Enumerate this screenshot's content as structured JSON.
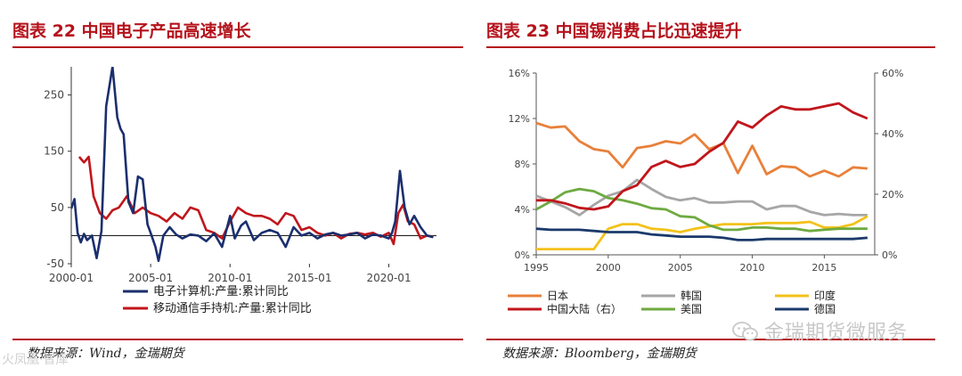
{
  "left": {
    "title": "图表 22 中国电子产品高速增长",
    "source": "数据来源：Wind，金瑞期货",
    "chart_data": {
      "type": "line",
      "title": "中国电子产品高速增长",
      "xlabel": "",
      "ylabel": "",
      "xlim": [
        2000,
        2023
      ],
      "ylim": [
        -50,
        300
      ],
      "yticks": [
        -50,
        50,
        150,
        250
      ],
      "yticklabels": [
        "-50",
        "50",
        "150",
        "250"
      ],
      "xticks": [
        2000,
        2005,
        2010,
        2015,
        2020
      ],
      "xticklabels": [
        "2000-01",
        "2005-01",
        "2010-01",
        "2015-01",
        "2020-01"
      ],
      "legend_position": "bottom",
      "series": [
        {
          "name": "电子计算机:产量:累计同比",
          "color": "#1b2f6e",
          "x": [
            2000.0,
            2000.2,
            2000.4,
            2000.6,
            2000.8,
            2001.0,
            2001.3,
            2001.6,
            2001.9,
            2002.2,
            2002.6,
            2002.9,
            2003.1,
            2003.3,
            2003.6,
            2003.9,
            2004.2,
            2004.5,
            2004.8,
            2005.0,
            2005.3,
            2005.5,
            2005.8,
            2006.2,
            2006.6,
            2007.0,
            2007.5,
            2008.0,
            2008.5,
            2009.0,
            2009.5,
            2010.0,
            2010.3,
            2010.7,
            2011.0,
            2011.5,
            2012.0,
            2012.5,
            2013.0,
            2013.5,
            2014.0,
            2014.5,
            2015.0,
            2015.5,
            2016.0,
            2016.5,
            2017.0,
            2017.5,
            2018.0,
            2018.5,
            2019.0,
            2019.5,
            2020.0,
            2020.2,
            2020.4,
            2020.7,
            2021.0,
            2021.3,
            2021.6,
            2022.0,
            2022.4,
            2022.8
          ],
          "values": [
            48,
            65,
            5,
            -12,
            3,
            -8,
            0,
            -40,
            8,
            230,
            300,
            210,
            190,
            180,
            60,
            40,
            105,
            100,
            20,
            5,
            -20,
            -45,
            0,
            15,
            2,
            -5,
            2,
            0,
            -10,
            4,
            -20,
            35,
            -5,
            18,
            25,
            -8,
            5,
            10,
            5,
            -20,
            15,
            0,
            5,
            -5,
            2,
            5,
            0,
            2,
            5,
            -5,
            2,
            0,
            -5,
            5,
            25,
            115,
            50,
            20,
            35,
            15,
            0,
            -3
          ]
        },
        {
          "name": "移动通信手持机:产量:累计同比",
          "color": "#c0161c",
          "x": [
            2000.5,
            2000.8,
            2001.1,
            2001.4,
            2001.8,
            2002.2,
            2002.6,
            2003.0,
            2003.5,
            2004.0,
            2004.5,
            2005.0,
            2005.5,
            2006.0,
            2006.5,
            2007.0,
            2007.5,
            2008.0,
            2008.5,
            2009.0,
            2009.5,
            2010.0,
            2010.5,
            2011.0,
            2011.5,
            2012.0,
            2012.5,
            2013.0,
            2013.5,
            2014.0,
            2014.5,
            2015.0,
            2015.5,
            2016.0,
            2016.5,
            2017.0,
            2017.5,
            2018.0,
            2018.5,
            2019.0,
            2019.5,
            2020.0,
            2020.3,
            2020.6,
            2020.9,
            2021.2,
            2021.6,
            2022.0,
            2022.4,
            2022.8
          ],
          "values": [
            140,
            130,
            140,
            70,
            40,
            30,
            45,
            50,
            70,
            40,
            50,
            40,
            35,
            25,
            40,
            30,
            50,
            45,
            10,
            5,
            -5,
            25,
            50,
            40,
            35,
            35,
            30,
            20,
            40,
            35,
            10,
            15,
            5,
            0,
            5,
            -5,
            3,
            5,
            2,
            5,
            -2,
            5,
            -15,
            40,
            55,
            25,
            20,
            -5,
            0,
            -2
          ]
        }
      ]
    }
  },
  "right": {
    "title": "图表 23 中国锡消费占比迅速提升",
    "source": "数据来源：Bloomberg，金瑞期货",
    "chart_data": {
      "type": "line",
      "title": "中国锡消费占比迅速提升",
      "xlabel": "",
      "ylabel": "",
      "x": [
        1995,
        1996,
        1997,
        1998,
        1999,
        2000,
        2001,
        2002,
        2003,
        2004,
        2005,
        2006,
        2007,
        2008,
        2009,
        2010,
        2011,
        2012,
        2013,
        2014,
        2015,
        2016,
        2017,
        2018
      ],
      "xlim": [
        1995,
        2018.5
      ],
      "xticks": [
        1995,
        2000,
        2005,
        2010,
        2015
      ],
      "xticklabels": [
        "1995",
        "2000",
        "2005",
        "2010",
        "2015"
      ],
      "ylim_left": [
        0,
        16
      ],
      "yticks_left": [
        0,
        4,
        8,
        12,
        16
      ],
      "yticklabels_left": [
        "0%",
        "4%",
        "8%",
        "12%",
        "16%"
      ],
      "ylim_right": [
        0,
        60
      ],
      "yticks_right": [
        0,
        20,
        40,
        60
      ],
      "yticklabels_right": [
        "0%",
        "20%",
        "40%",
        "60%"
      ],
      "legend_position": "bottom",
      "series": [
        {
          "name": "日本",
          "axis": "left",
          "color": "#e8803a",
          "values": [
            11.6,
            11.2,
            11.3,
            10.0,
            9.3,
            9.1,
            7.7,
            9.4,
            9.6,
            10.0,
            9.8,
            10.6,
            9.3,
            9.8,
            7.2,
            9.6,
            7.1,
            7.8,
            7.7,
            6.9,
            7.4,
            6.9,
            7.7,
            7.6
          ]
        },
        {
          "name": "韩国",
          "axis": "left",
          "color": "#a6a6a6",
          "values": [
            5.2,
            4.7,
            4.2,
            3.5,
            4.4,
            5.2,
            5.6,
            6.6,
            5.8,
            5.1,
            4.8,
            5.0,
            4.6,
            4.6,
            4.7,
            4.7,
            4.0,
            4.3,
            4.3,
            3.8,
            3.5,
            3.6,
            3.5,
            3.5
          ]
        },
        {
          "name": "印度",
          "axis": "left",
          "color": "#f3c21a",
          "values": [
            0.5,
            0.5,
            0.5,
            0.5,
            0.5,
            2.3,
            2.7,
            2.7,
            2.3,
            2.2,
            2.0,
            2.3,
            2.5,
            2.7,
            2.7,
            2.7,
            2.8,
            2.8,
            2.8,
            2.9,
            2.4,
            2.4,
            2.7,
            3.4
          ]
        },
        {
          "name": "中国大陆（右）",
          "axis": "right",
          "color": "#c0161c",
          "values": [
            18.0,
            18.0,
            17.0,
            15.5,
            15.0,
            16.0,
            21.0,
            23.0,
            29.0,
            31.0,
            29.0,
            30.0,
            34.0,
            37.0,
            44.0,
            42.0,
            46.0,
            49.0,
            48.0,
            48.0,
            49.0,
            50.0,
            47.0,
            45.0
          ]
        },
        {
          "name": "美国",
          "axis": "left",
          "color": "#6eaa40",
          "values": [
            4.0,
            4.7,
            5.5,
            5.8,
            5.6,
            5.0,
            4.8,
            4.5,
            4.1,
            4.0,
            3.4,
            3.3,
            2.6,
            2.2,
            2.2,
            2.4,
            2.4,
            2.3,
            2.3,
            2.1,
            2.2,
            2.3,
            2.3,
            2.3
          ]
        },
        {
          "name": "德国",
          "axis": "left",
          "color": "#1b3a6b",
          "values": [
            2.3,
            2.2,
            2.2,
            2.2,
            2.1,
            2.0,
            2.0,
            2.0,
            1.8,
            1.7,
            1.6,
            1.6,
            1.6,
            1.5,
            1.3,
            1.3,
            1.4,
            1.4,
            1.4,
            1.4,
            1.4,
            1.4,
            1.4,
            1.5
          ]
        }
      ]
    }
  },
  "watermark": {
    "text": "金瑞期货微服务",
    "left_text": "火凤凰·智库"
  }
}
